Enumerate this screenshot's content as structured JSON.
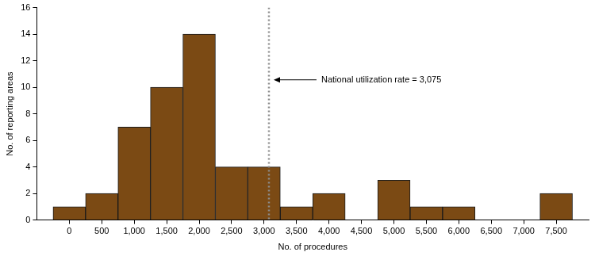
{
  "chart_data": {
    "type": "histogram",
    "bins": [
      -250,
      250,
      750,
      1250,
      1750,
      2250,
      2750,
      3250,
      3750,
      4250,
      4750,
      5250,
      5750,
      6250,
      6750,
      7250,
      7750
    ],
    "values": [
      1,
      2,
      7,
      10,
      14,
      4,
      4,
      1,
      2,
      0,
      3,
      1,
      1,
      0,
      0,
      2
    ],
    "color": "#7b4a14",
    "xlabel": "No. of procedures",
    "ylabel": "No. of reporting areas",
    "xlim": [
      -500,
      8000
    ],
    "xticks": [
      0,
      500,
      {
        "value": 1000,
        "label": "1,000"
      },
      {
        "value": 1500,
        "label": "1,500"
      },
      {
        "value": 2000,
        "label": "2,000"
      },
      {
        "value": 2500,
        "label": "2,500"
      },
      {
        "value": 3000,
        "label": "3,000"
      },
      {
        "value": 3500,
        "label": "3,500"
      },
      {
        "value": 4000,
        "label": "4,000"
      },
      {
        "value": 4500,
        "label": "4,500"
      },
      {
        "value": 5000,
        "label": "5,000"
      },
      {
        "value": 5500,
        "label": "5,500"
      },
      {
        "value": 6000,
        "label": "6,000"
      },
      {
        "value": 6500,
        "label": "6,500"
      },
      {
        "value": 7000,
        "label": "7,000"
      },
      {
        "value": 7500,
        "label": "7,500"
      }
    ],
    "ylim": [
      0,
      16
    ],
    "yticks": [
      0,
      2,
      4,
      6,
      8,
      10,
      12,
      14,
      16
    ],
    "grid": false,
    "annotations": [
      {
        "text": "National utilization rate = 3,075",
        "x": 3075,
        "line_style": "dotted"
      }
    ]
  }
}
